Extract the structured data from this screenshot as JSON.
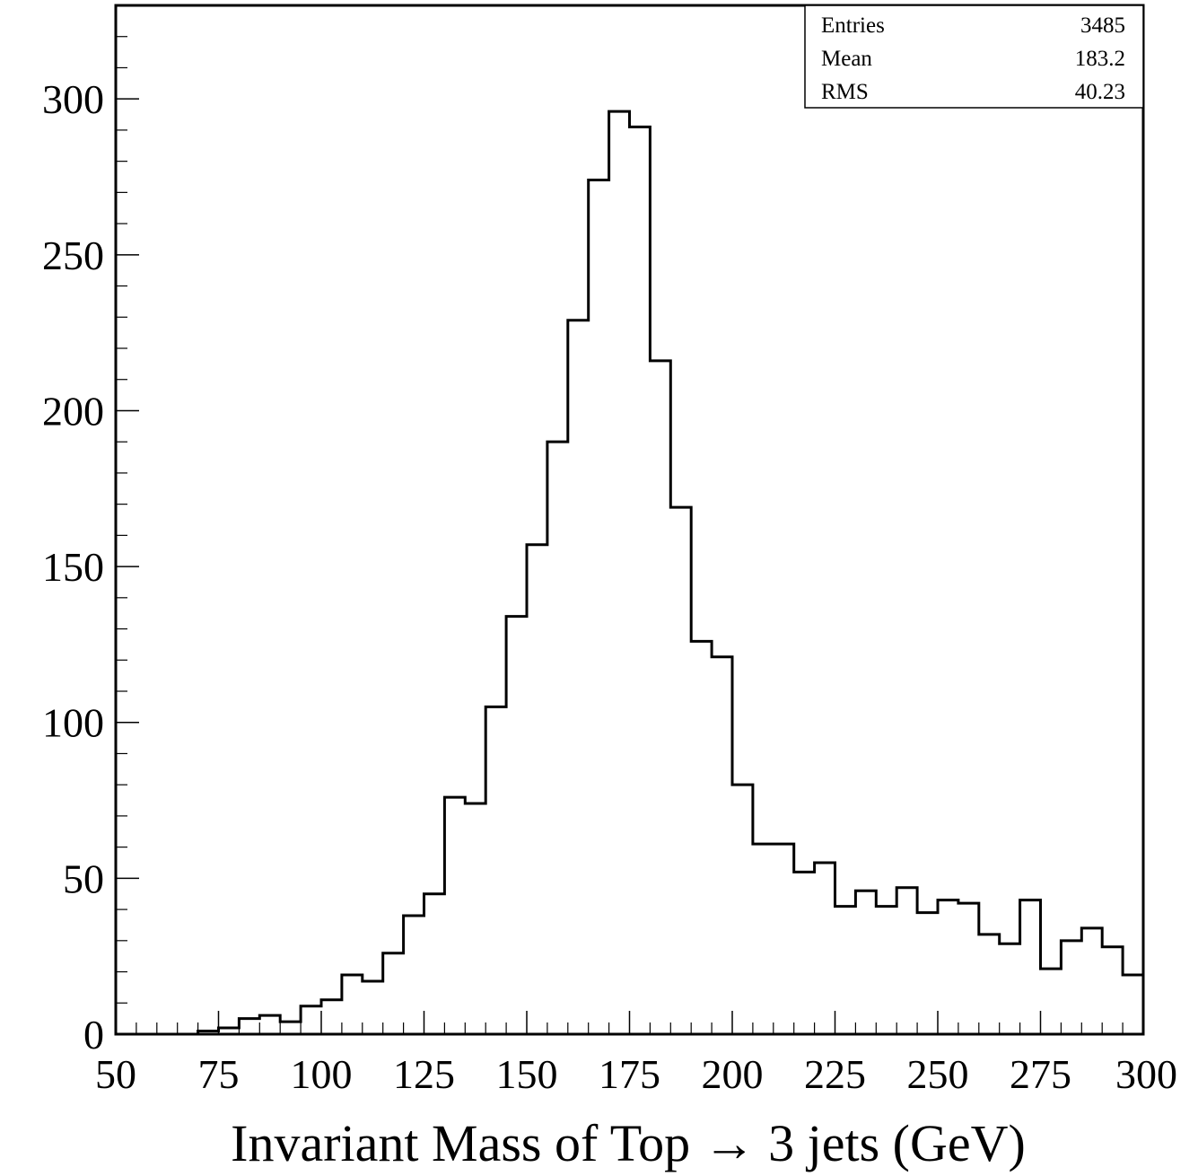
{
  "chart_data": {
    "type": "histogram",
    "title": "",
    "xlabel": "Invariant Mass of Top → 3 jets (GeV)",
    "ylabel": "",
    "xlim": [
      50,
      300
    ],
    "ylim": [
      0,
      330
    ],
    "grid": false,
    "bin_width": 5,
    "bin_edges_start": 50,
    "x_ticks": [
      "50",
      "75",
      "100",
      "125",
      "150",
      "175",
      "200",
      "225",
      "250",
      "275",
      "300"
    ],
    "y_ticks": [
      "0",
      "50",
      "100",
      "150",
      "200",
      "250",
      "300"
    ],
    "values": [
      0,
      0,
      0,
      0,
      1,
      2,
      5,
      6,
      4,
      9,
      11,
      19,
      17,
      26,
      38,
      45,
      76,
      74,
      105,
      134,
      157,
      190,
      229,
      274,
      296,
      291,
      216,
      169,
      126,
      121,
      80,
      61,
      61,
      52,
      55,
      41,
      46,
      41,
      47,
      39,
      43,
      42,
      32,
      29,
      43,
      21,
      30,
      34,
      28,
      19
    ],
    "stats_box": {
      "position": "top-right",
      "rows": [
        {
          "label": "Entries",
          "value": "3485"
        },
        {
          "label": "Mean",
          "value": "183.2"
        },
        {
          "label": "RMS",
          "value": "40.23"
        }
      ]
    }
  }
}
